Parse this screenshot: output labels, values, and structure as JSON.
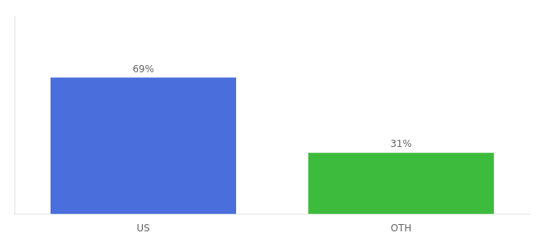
{
  "chart_data": {
    "type": "bar",
    "categories": [
      "US",
      "OTH"
    ],
    "values": [
      69,
      31
    ],
    "colors": [
      "#4a6edb",
      "#3dbb3d"
    ],
    "ylim": [
      0,
      100
    ],
    "data_labels": true,
    "value_labels": [
      "69%",
      "31%"
    ],
    "tick_labels": "x",
    "grid": false
  }
}
